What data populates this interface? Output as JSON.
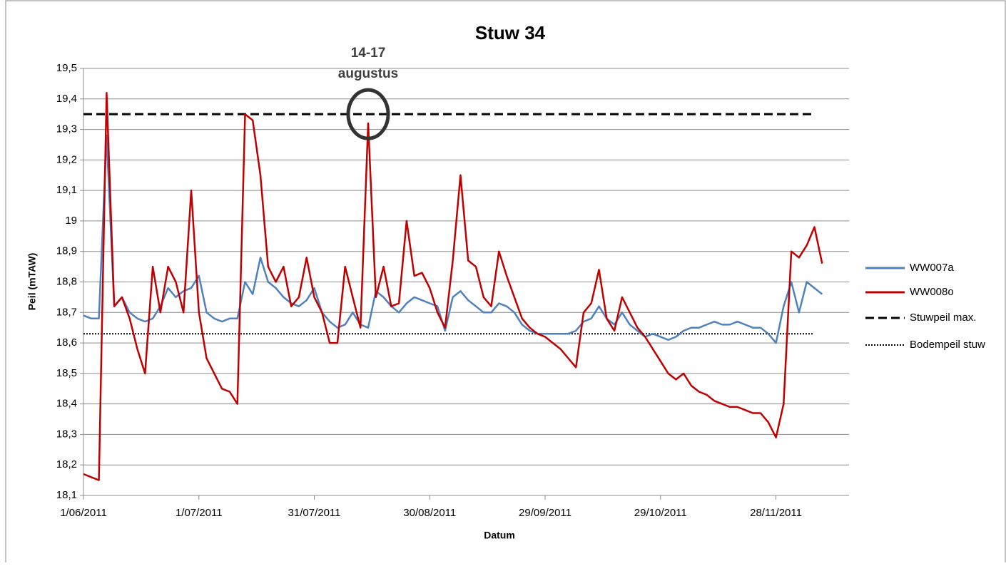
{
  "chart_data": {
    "type": "line",
    "title": "Stuw 34",
    "xlabel": "Datum",
    "ylabel": "Peil (mTAW)",
    "xlim": [
      "2011-06-01",
      "2011-12-17"
    ],
    "xticks": [
      {
        "value": "2011-06-01",
        "label": "1/06/2011"
      },
      {
        "value": "2011-07-01",
        "label": "1/07/2011"
      },
      {
        "value": "2011-07-31",
        "label": "31/07/2011"
      },
      {
        "value": "2011-08-30",
        "label": "30/08/2011"
      },
      {
        "value": "2011-09-29",
        "label": "29/09/2011"
      },
      {
        "value": "2011-10-29",
        "label": "29/10/2011"
      },
      {
        "value": "2011-11-28",
        "label": "28/11/2011"
      }
    ],
    "ylim": [
      18.1,
      19.5
    ],
    "yticks": [
      {
        "value": 18.1,
        "label": "18,1"
      },
      {
        "value": 18.2,
        "label": "18,2"
      },
      {
        "value": 18.3,
        "label": "18,3"
      },
      {
        "value": 18.4,
        "label": "18,4"
      },
      {
        "value": 18.5,
        "label": "18,5"
      },
      {
        "value": 18.6,
        "label": "18,6"
      },
      {
        "value": 18.7,
        "label": "18,7"
      },
      {
        "value": 18.8,
        "label": "18,8"
      },
      {
        "value": 18.9,
        "label": "18,9"
      },
      19,
      {
        "value": 19.1,
        "label": "19,1"
      },
      {
        "value": 19.2,
        "label": "19,2"
      },
      {
        "value": 19.3,
        "label": "19,3"
      },
      {
        "value": 19.4,
        "label": "19,4"
      },
      {
        "value": 19.5,
        "label": "19,5"
      }
    ],
    "grid": true,
    "legend": "right",
    "x": [
      "2011-06-01",
      "2011-06-03",
      "2011-06-05",
      "2011-06-07",
      "2011-06-09",
      "2011-06-11",
      "2011-06-13",
      "2011-06-15",
      "2011-06-17",
      "2011-06-19",
      "2011-06-21",
      "2011-06-23",
      "2011-06-25",
      "2011-06-27",
      "2011-06-29",
      "2011-07-01",
      "2011-07-03",
      "2011-07-05",
      "2011-07-07",
      "2011-07-09",
      "2011-07-11",
      "2011-07-13",
      "2011-07-15",
      "2011-07-17",
      "2011-07-19",
      "2011-07-21",
      "2011-07-23",
      "2011-07-25",
      "2011-07-27",
      "2011-07-29",
      "2011-07-31",
      "2011-08-02",
      "2011-08-04",
      "2011-08-06",
      "2011-08-08",
      "2011-08-10",
      "2011-08-12",
      "2011-08-14",
      "2011-08-16",
      "2011-08-18",
      "2011-08-20",
      "2011-08-22",
      "2011-08-24",
      "2011-08-26",
      "2011-08-28",
      "2011-08-30",
      "2011-09-01",
      "2011-09-03",
      "2011-09-05",
      "2011-09-07",
      "2011-09-09",
      "2011-09-11",
      "2011-09-13",
      "2011-09-15",
      "2011-09-17",
      "2011-09-19",
      "2011-09-21",
      "2011-09-23",
      "2011-09-25",
      "2011-09-27",
      "2011-09-29",
      "2011-10-01",
      "2011-10-03",
      "2011-10-05",
      "2011-10-07",
      "2011-10-09",
      "2011-10-11",
      "2011-10-13",
      "2011-10-15",
      "2011-10-17",
      "2011-10-19",
      "2011-10-21",
      "2011-10-23",
      "2011-10-25",
      "2011-10-27",
      "2011-10-29",
      "2011-10-31",
      "2011-11-02",
      "2011-11-04",
      "2011-11-06",
      "2011-11-08",
      "2011-11-10",
      "2011-11-12",
      "2011-11-14",
      "2011-11-16",
      "2011-11-18",
      "2011-11-20",
      "2011-11-22",
      "2011-11-24",
      "2011-11-26",
      "2011-11-28",
      "2011-11-30",
      "2011-12-02",
      "2011-12-04",
      "2011-12-06",
      "2011-12-08",
      "2011-12-10"
    ],
    "series": [
      {
        "name": "WW007a",
        "color": "#4f81bd",
        "values": [
          18.69,
          18.68,
          18.68,
          19.28,
          18.72,
          18.75,
          18.7,
          18.68,
          18.67,
          18.68,
          18.72,
          18.78,
          18.75,
          18.77,
          18.78,
          18.82,
          18.7,
          18.68,
          18.67,
          18.68,
          18.68,
          18.8,
          18.76,
          18.88,
          18.8,
          18.78,
          18.75,
          18.73,
          18.72,
          18.74,
          18.78,
          18.7,
          18.67,
          18.65,
          18.66,
          18.7,
          18.66,
          18.65,
          18.77,
          18.75,
          18.72,
          18.7,
          18.73,
          18.75,
          18.74,
          18.73,
          18.72,
          18.64,
          18.75,
          18.77,
          18.74,
          18.72,
          18.7,
          18.7,
          18.73,
          18.72,
          18.7,
          18.66,
          18.64,
          18.63,
          18.63,
          18.63,
          18.63,
          18.63,
          18.64,
          18.67,
          18.68,
          18.72,
          18.68,
          18.66,
          18.7,
          18.66,
          18.64,
          18.62,
          18.63,
          18.62,
          18.61,
          18.62,
          18.64,
          18.65,
          18.65,
          18.66,
          18.67,
          18.66,
          18.66,
          18.67,
          18.66,
          18.65,
          18.65,
          18.63,
          18.6,
          18.72,
          18.8,
          18.7,
          18.8,
          18.78,
          18.76
        ]
      },
      {
        "name": "WW008o",
        "color": "#c00000",
        "values": [
          18.17,
          18.16,
          18.15,
          19.42,
          18.72,
          18.75,
          18.68,
          18.58,
          18.5,
          18.85,
          18.7,
          18.85,
          18.8,
          18.7,
          19.1,
          18.7,
          18.55,
          18.5,
          18.45,
          18.44,
          18.4,
          19.35,
          19.33,
          19.15,
          18.85,
          18.8,
          18.85,
          18.72,
          18.75,
          18.88,
          18.75,
          18.7,
          18.6,
          18.6,
          18.85,
          18.75,
          18.65,
          19.32,
          18.75,
          18.85,
          18.72,
          18.73,
          19.0,
          18.82,
          18.83,
          18.78,
          18.7,
          18.65,
          18.87,
          19.15,
          18.87,
          18.85,
          18.75,
          18.72,
          18.9,
          18.82,
          18.75,
          18.68,
          18.65,
          18.63,
          18.62,
          18.6,
          18.58,
          18.55,
          18.52,
          18.7,
          18.73,
          18.84,
          18.68,
          18.64,
          18.75,
          18.7,
          18.65,
          18.62,
          18.58,
          18.54,
          18.5,
          18.48,
          18.5,
          18.46,
          18.44,
          18.43,
          18.41,
          18.4,
          18.39,
          18.39,
          18.38,
          18.37,
          18.37,
          18.34,
          18.29,
          18.4,
          18.9,
          18.88,
          18.92,
          18.98,
          18.86
        ]
      }
    ],
    "reference_lines": [
      {
        "name": "Stuwpeil max.",
        "value": 19.35,
        "style": "dashed",
        "color": "#000000"
      },
      {
        "name": "Bodempeil stuw",
        "value": 18.63,
        "style": "dotted",
        "color": "#000000"
      }
    ],
    "annotation": {
      "text": [
        "14-17",
        "augustus"
      ],
      "x": "2011-08-14",
      "y": 19.35
    }
  }
}
